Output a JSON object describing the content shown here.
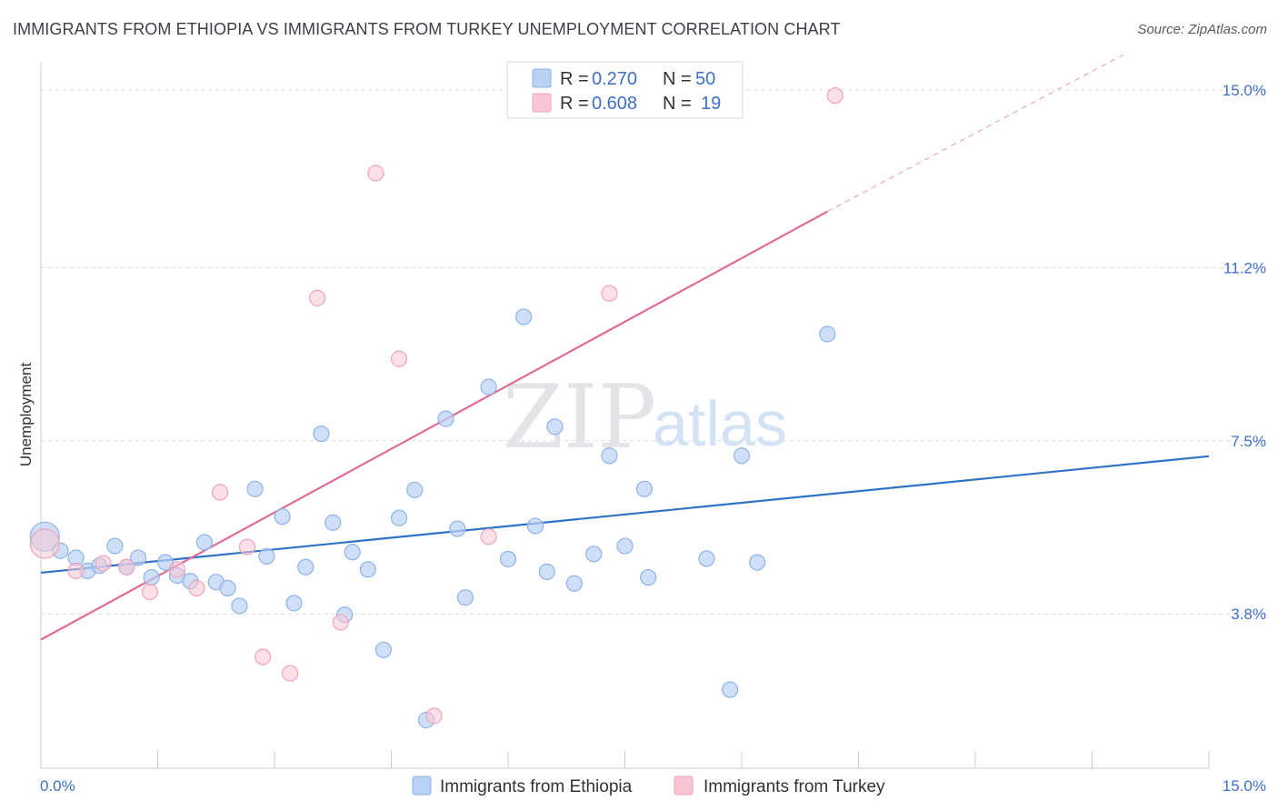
{
  "header": {
    "title": "IMMIGRANTS FROM ETHIOPIA VS IMMIGRANTS FROM TURKEY UNEMPLOYMENT CORRELATION CHART",
    "source": "Source: ZipAtlas.com"
  },
  "watermark": {
    "zip": "ZIP",
    "atlas": "atlas"
  },
  "colors": {
    "ethiopia_fill": "#b9d2f3",
    "ethiopia_stroke": "#8fb3e6",
    "ethiopia_line": "#2f72c8",
    "turkey_fill": "#f8c6d4",
    "turkey_stroke": "#eea3b9",
    "turkey_line": "#e06b95",
    "tick_text": "#3f6fc9",
    "grid": "#d9dce1"
  },
  "legend": {
    "rows": [
      {
        "r_label": "R =",
        "r_value": "0.270",
        "n_label": "N =",
        "n_value": "50"
      },
      {
        "r_label": "R =",
        "r_value": "0.608",
        "n_label": "N =",
        "n_value": "19"
      }
    ]
  },
  "chart_data": {
    "type": "scatter",
    "title": "IMMIGRANTS FROM ETHIOPIA VS IMMIGRANTS FROM TURKEY UNEMPLOYMENT CORRELATION CHART",
    "xlabel": "",
    "ylabel": "Unemployment",
    "xlim": [
      0,
      15
    ],
    "ylim": [
      0.5,
      15.6
    ],
    "x_tick_labels": [
      "0.0%",
      "15.0%"
    ],
    "y_ticks": [
      {
        "value": 3.8,
        "label": "3.8%"
      },
      {
        "value": 7.5,
        "label": "7.5%"
      },
      {
        "value": 11.2,
        "label": "11.2%"
      },
      {
        "value": 15.0,
        "label": "15.0%"
      }
    ],
    "series": [
      {
        "name": "Immigrants from Ethiopia",
        "r": 0.27,
        "n": 50,
        "trend": {
          "x": [
            0,
            15
          ],
          "y": [
            4.68,
            7.17
          ]
        },
        "points": [
          [
            0.05,
            5.45,
            16
          ],
          [
            0.25,
            5.15,
            10
          ],
          [
            0.45,
            5.0,
            10
          ],
          [
            0.6,
            4.72,
            10
          ],
          [
            0.75,
            4.83,
            10
          ],
          [
            0.95,
            5.25,
            10
          ],
          [
            1.1,
            4.8,
            10
          ],
          [
            1.25,
            5.0,
            10
          ],
          [
            1.42,
            4.58,
            10
          ],
          [
            1.6,
            4.9,
            10
          ],
          [
            1.75,
            4.62,
            10
          ],
          [
            1.92,
            4.5,
            10
          ],
          [
            2.1,
            5.33,
            10
          ],
          [
            2.25,
            4.48,
            10
          ],
          [
            2.4,
            4.35,
            10
          ],
          [
            2.55,
            3.97,
            10
          ],
          [
            2.75,
            6.47,
            10
          ],
          [
            2.9,
            5.03,
            10
          ],
          [
            3.1,
            5.88,
            10
          ],
          [
            3.25,
            4.03,
            10
          ],
          [
            3.4,
            4.8,
            10
          ],
          [
            3.6,
            7.65,
            10
          ],
          [
            3.75,
            5.75,
            10
          ],
          [
            3.9,
            3.78,
            10
          ],
          [
            4.0,
            5.12,
            10
          ],
          [
            4.2,
            4.75,
            10
          ],
          [
            4.4,
            3.03,
            10
          ],
          [
            4.6,
            5.85,
            10
          ],
          [
            4.8,
            6.45,
            10
          ],
          [
            4.95,
            1.53,
            10
          ],
          [
            5.2,
            7.97,
            10
          ],
          [
            5.35,
            5.62,
            10
          ],
          [
            5.45,
            4.15,
            10
          ],
          [
            5.75,
            8.65,
            10
          ],
          [
            6.0,
            4.97,
            10
          ],
          [
            6.2,
            10.15,
            10
          ],
          [
            6.35,
            5.68,
            10
          ],
          [
            6.5,
            4.7,
            10
          ],
          [
            6.6,
            7.8,
            10
          ],
          [
            6.85,
            4.45,
            10
          ],
          [
            7.1,
            5.08,
            10
          ],
          [
            7.3,
            7.18,
            10
          ],
          [
            7.5,
            5.25,
            10
          ],
          [
            7.75,
            6.47,
            10
          ],
          [
            7.8,
            4.58,
            10
          ],
          [
            8.55,
            4.98,
            10
          ],
          [
            8.85,
            2.18,
            10
          ],
          [
            9.0,
            7.18,
            10
          ],
          [
            9.2,
            4.9,
            10
          ],
          [
            10.1,
            9.78,
            10
          ]
        ]
      },
      {
        "name": "Immigrants from Turkey",
        "r": 0.608,
        "n": 19,
        "trend": {
          "x": [
            0,
            10.1
          ],
          "y": [
            3.25,
            12.4
          ],
          "dashed_extension": {
            "x": [
              10.1,
              13.9
            ],
            "y": [
              12.4,
              15.75
            ]
          }
        },
        "points": [
          [
            0.05,
            5.3,
            16
          ],
          [
            0.45,
            4.72,
            10
          ],
          [
            0.8,
            4.88,
            10
          ],
          [
            1.1,
            4.8,
            10
          ],
          [
            1.4,
            4.27,
            10
          ],
          [
            1.75,
            4.75,
            10
          ],
          [
            2.0,
            4.35,
            10
          ],
          [
            2.3,
            6.4,
            10
          ],
          [
            2.65,
            5.23,
            10
          ],
          [
            2.85,
            2.88,
            10
          ],
          [
            3.2,
            2.53,
            10
          ],
          [
            3.55,
            10.55,
            10
          ],
          [
            3.85,
            3.62,
            10
          ],
          [
            4.3,
            13.22,
            10
          ],
          [
            4.6,
            9.25,
            10
          ],
          [
            5.05,
            1.62,
            10
          ],
          [
            5.75,
            5.45,
            10
          ],
          [
            7.3,
            10.65,
            10
          ],
          [
            10.2,
            14.88,
            10
          ]
        ]
      }
    ],
    "legend": [
      "Immigrants from Ethiopia",
      "Immigrants from Turkey"
    ],
    "grid": true,
    "legend_position": "top-center"
  }
}
